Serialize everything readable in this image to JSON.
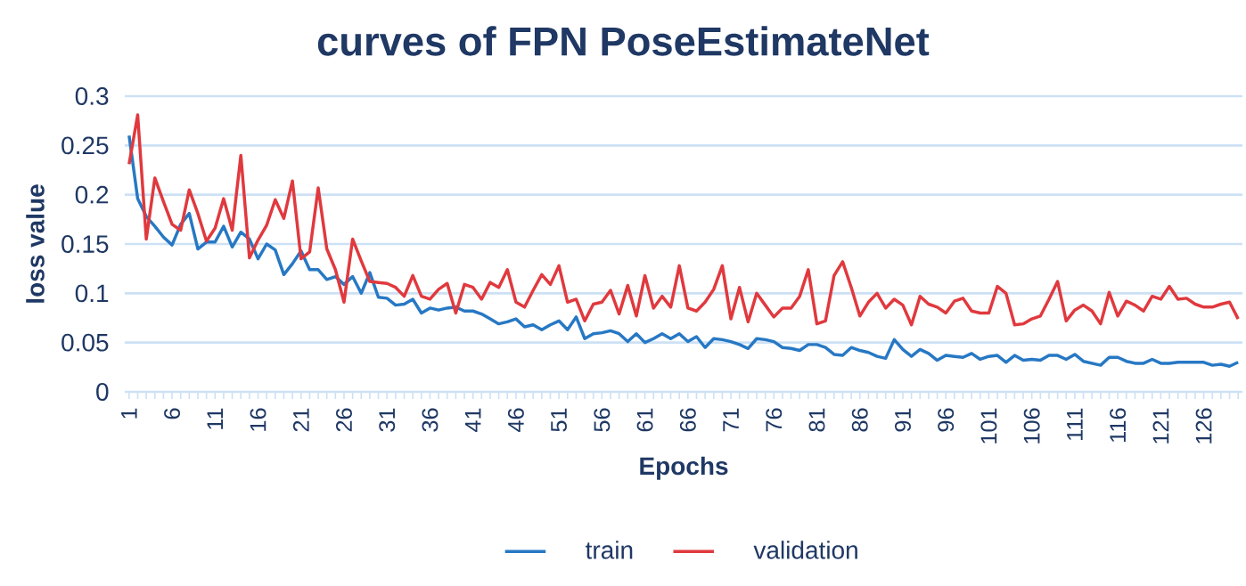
{
  "chart_data": {
    "type": "line",
    "title": "curves of FPN PoseEstimateNet",
    "xlabel": "Epochs",
    "ylabel": "loss value",
    "categories": [
      "1",
      null,
      null,
      null,
      null,
      "6",
      null,
      null,
      null,
      null,
      "11",
      null,
      null,
      null,
      null,
      "16",
      null,
      null,
      null,
      null,
      "21",
      null,
      null,
      null,
      null,
      "26",
      null,
      null,
      null,
      null,
      "31",
      null,
      null,
      null,
      null,
      "36",
      null,
      null,
      null,
      null,
      "41",
      null,
      null,
      null,
      null,
      "46",
      null,
      null,
      null,
      null,
      "51",
      null,
      null,
      null,
      null,
      "56",
      null,
      null,
      null,
      null,
      "61",
      null,
      null,
      null,
      null,
      "66",
      null,
      null,
      null,
      null,
      "71",
      null,
      null,
      null,
      null,
      "76",
      null,
      null,
      null,
      null,
      "81",
      null,
      null,
      null,
      null,
      "86",
      null,
      null,
      null,
      null,
      "91",
      null,
      null,
      null,
      null,
      "96",
      null,
      null,
      null,
      null,
      "101",
      null,
      null,
      null,
      null,
      "106",
      null,
      null,
      null,
      null,
      "111",
      null,
      null,
      null,
      null,
      "116",
      null,
      null,
      null,
      null,
      "121",
      null,
      null,
      null,
      null,
      "126",
      null,
      null,
      null,
      null
    ],
    "series": [
      {
        "name": "train",
        "color": "#2778c4",
        "values": [
          0.26,
          0.196,
          0.178,
          0.168,
          0.157,
          0.149,
          0.17,
          0.181,
          0.145,
          0.152,
          0.152,
          0.168,
          0.147,
          0.162,
          0.155,
          0.135,
          0.15,
          0.144,
          0.119,
          0.13,
          0.143,
          0.124,
          0.124,
          0.114,
          0.117,
          0.109,
          0.117,
          0.1,
          0.121,
          0.096,
          0.095,
          0.088,
          0.089,
          0.094,
          0.08,
          0.085,
          0.083,
          0.085,
          0.086,
          0.082,
          0.082,
          0.079,
          0.074,
          0.069,
          0.071,
          0.074,
          0.066,
          0.068,
          0.063,
          0.068,
          0.072,
          0.063,
          0.076,
          0.054,
          0.059,
          0.06,
          0.062,
          0.059,
          0.051,
          0.059,
          0.05,
          0.054,
          0.059,
          0.054,
          0.059,
          0.051,
          0.056,
          0.045,
          0.054,
          0.053,
          0.051,
          0.048,
          0.044,
          0.054,
          0.053,
          0.051,
          0.045,
          0.044,
          0.042,
          0.048,
          0.048,
          0.045,
          0.038,
          0.037,
          0.045,
          0.042,
          0.04,
          0.036,
          0.034,
          0.053,
          0.043,
          0.036,
          0.043,
          0.039,
          0.032,
          0.037,
          0.036,
          0.035,
          0.039,
          0.033,
          0.036,
          0.037,
          0.03,
          0.037,
          0.032,
          0.033,
          0.032,
          0.037,
          0.037,
          0.033,
          0.038,
          0.031,
          0.029,
          0.027,
          0.035,
          0.035,
          0.031,
          0.029,
          0.029,
          0.033,
          0.029,
          0.029,
          0.03,
          0.03,
          0.03,
          0.03,
          0.027,
          0.028,
          0.026,
          0.03
        ]
      },
      {
        "name": "validation",
        "color": "#e0393e",
        "values": [
          0.231,
          0.281,
          0.155,
          0.217,
          0.193,
          0.17,
          0.164,
          0.205,
          0.181,
          0.153,
          0.166,
          0.196,
          0.164,
          0.24,
          0.136,
          0.154,
          0.169,
          0.195,
          0.176,
          0.214,
          0.135,
          0.142,
          0.207,
          0.145,
          0.124,
          0.091,
          0.155,
          0.133,
          0.112,
          0.111,
          0.11,
          0.106,
          0.097,
          0.118,
          0.097,
          0.094,
          0.104,
          0.11,
          0.08,
          0.109,
          0.106,
          0.094,
          0.111,
          0.106,
          0.124,
          0.091,
          0.086,
          0.103,
          0.119,
          0.109,
          0.128,
          0.091,
          0.094,
          0.072,
          0.089,
          0.091,
          0.103,
          0.079,
          0.108,
          0.077,
          0.118,
          0.085,
          0.097,
          0.086,
          0.128,
          0.085,
          0.082,
          0.091,
          0.104,
          0.128,
          0.074,
          0.106,
          0.071,
          0.1,
          0.088,
          0.076,
          0.085,
          0.085,
          0.097,
          0.124,
          0.069,
          0.072,
          0.118,
          0.132,
          0.106,
          0.077,
          0.091,
          0.1,
          0.085,
          0.094,
          0.088,
          0.068,
          0.097,
          0.089,
          0.086,
          0.08,
          0.092,
          0.095,
          0.082,
          0.08,
          0.08,
          0.107,
          0.1,
          0.068,
          0.069,
          0.074,
          0.077,
          0.094,
          0.112,
          0.072,
          0.083,
          0.088,
          0.082,
          0.069,
          0.101,
          0.077,
          0.092,
          0.088,
          0.082,
          0.097,
          0.094,
          0.107,
          0.094,
          0.095,
          0.089,
          0.086,
          0.086,
          0.089,
          0.091,
          0.074
        ]
      }
    ],
    "ylim": [
      0,
      0.3
    ],
    "yticks": [
      0,
      0.05,
      0.1,
      0.15,
      0.2,
      0.25,
      0.3
    ],
    "grid": "y",
    "legend": "bottom",
    "line_style": "solid"
  }
}
